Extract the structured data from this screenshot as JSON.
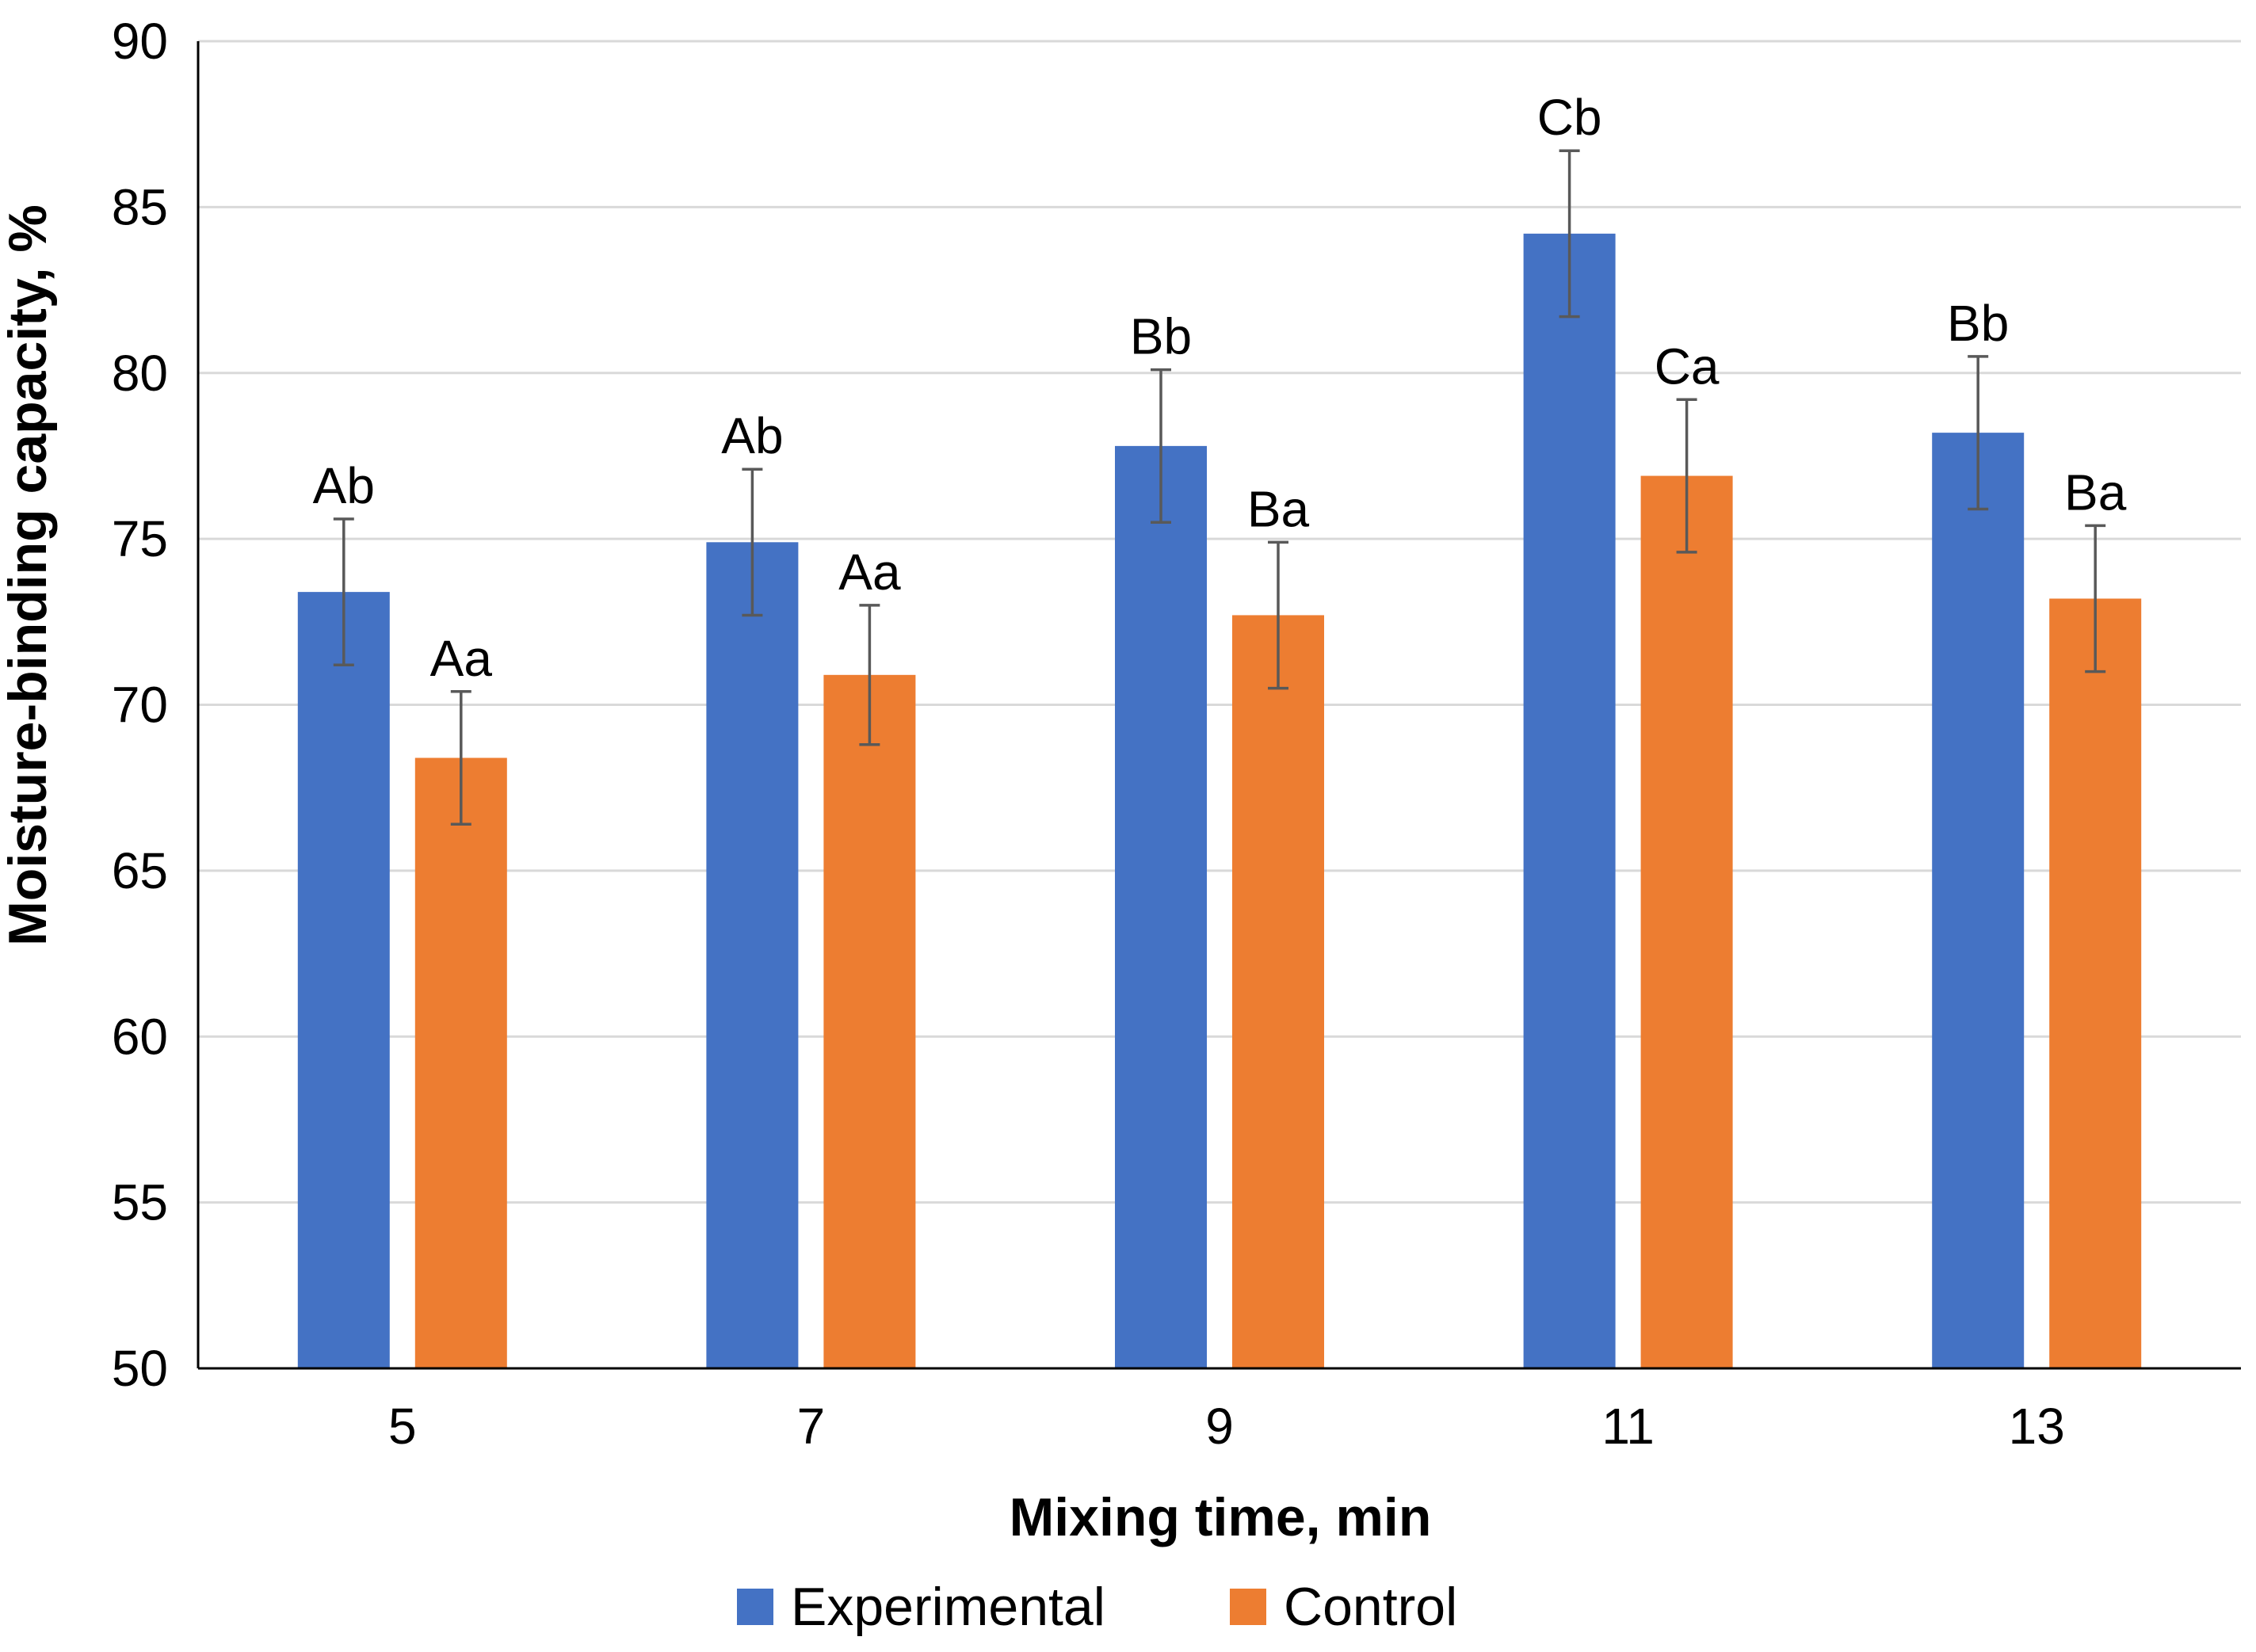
{
  "chart_data": {
    "type": "bar",
    "title": "",
    "xlabel": "Mixing time, min",
    "ylabel": "Moisture-binding capacity, %",
    "categories": [
      "5",
      "7",
      "9",
      "11",
      "13"
    ],
    "ylim": [
      50,
      90
    ],
    "yticks": [
      50,
      55,
      60,
      65,
      70,
      75,
      80,
      85,
      90
    ],
    "grid": "horizontal",
    "legend_position": "bottom",
    "series": [
      {
        "name": "Experimental",
        "color": "#4472C4",
        "values": [
          73.4,
          74.9,
          77.8,
          84.2,
          78.2
        ],
        "errors": [
          2.2,
          2.2,
          2.3,
          2.5,
          2.3
        ],
        "labels": [
          "Ab",
          "Ab",
          "Bb",
          "Cb",
          "Bb"
        ]
      },
      {
        "name": "Control",
        "color": "#ED7D31",
        "values": [
          68.4,
          70.9,
          72.7,
          76.9,
          73.2
        ],
        "errors": [
          2.0,
          2.1,
          2.2,
          2.3,
          2.2
        ],
        "labels": [
          "Aa",
          "Aa",
          "Ba",
          "Ca",
          "Ba"
        ]
      }
    ]
  }
}
